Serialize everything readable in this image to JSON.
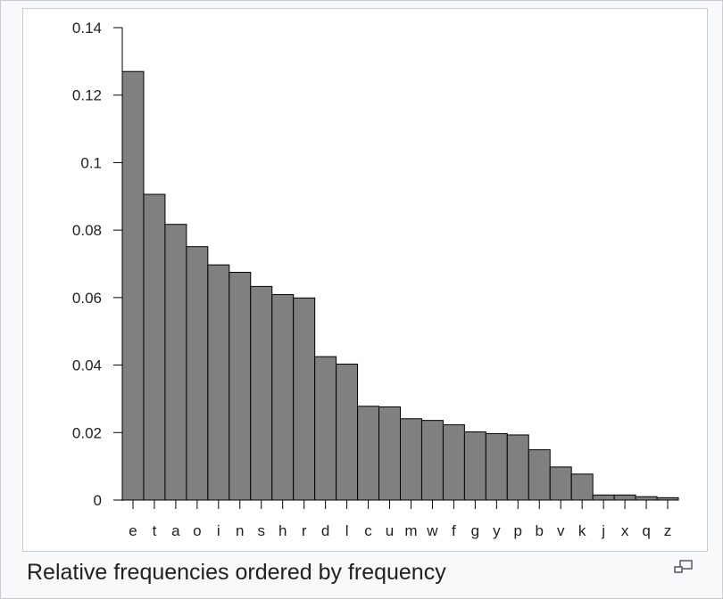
{
  "caption": "Relative frequencies ordered by frequency",
  "icons": {
    "enlarge": "magnify-clip-icon"
  },
  "colors": {
    "bar_fill": "#808080",
    "bar_stroke": "#000000",
    "axis": "#000000"
  },
  "chart_data": {
    "type": "bar",
    "title": "",
    "xlabel": "",
    "ylabel": "",
    "ylim": [
      0,
      0.14
    ],
    "yticks": [
      "0",
      "0.02",
      "0.04",
      "0.06",
      "0.08",
      "0.1",
      "0.12",
      "0.14"
    ],
    "categories": [
      "e",
      "t",
      "a",
      "o",
      "i",
      "n",
      "s",
      "h",
      "r",
      "d",
      "l",
      "c",
      "u",
      "m",
      "w",
      "f",
      "g",
      "y",
      "p",
      "b",
      "v",
      "k",
      "j",
      "x",
      "q",
      "z"
    ],
    "values": [
      0.127,
      0.0906,
      0.0817,
      0.0751,
      0.0697,
      0.0675,
      0.0633,
      0.0609,
      0.0599,
      0.0425,
      0.0403,
      0.0278,
      0.0276,
      0.0241,
      0.0236,
      0.0223,
      0.0202,
      0.0197,
      0.0193,
      0.0149,
      0.0098,
      0.0077,
      0.0015,
      0.0015,
      0.001,
      0.0007
    ],
    "grid": false,
    "legend": "none"
  }
}
